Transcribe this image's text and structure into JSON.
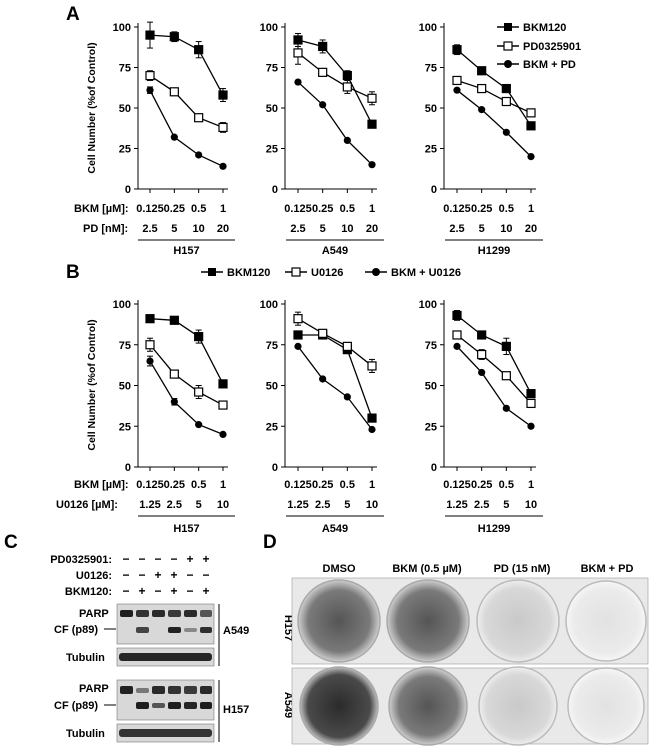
{
  "colors": {
    "line": "#000000",
    "panel_bg": "#ffffff",
    "blot_bg": "#d6d6d6",
    "plate_bg": "#e4e4e4"
  },
  "ylabel": "Cell Number (%of Control)",
  "yticks": [
    "0",
    "25",
    "50",
    "75",
    "100"
  ],
  "panelA": {
    "letter": "A",
    "row1_label": "BKM [µM]:",
    "row2_label": "PD [nM]:",
    "row1_values": [
      "0.125",
      "0.25",
      "0.5",
      "1"
    ],
    "row2_values": [
      "2.5",
      "5",
      "10",
      "20"
    ],
    "legend": [
      "BKM120",
      "PD0325901",
      "BKM + PD"
    ]
  },
  "panelB": {
    "letter": "B",
    "row1_label": "BKM [µM]:",
    "row2_label": "U0126 [µM]:",
    "row1_values": [
      "0.125",
      "0.25",
      "0.5",
      "1"
    ],
    "row2_values": [
      "1.25",
      "2.5",
      "5",
      "10"
    ],
    "legend": [
      "BKM120",
      "U0126",
      "BKM + U0126"
    ]
  },
  "chart_data": [
    {
      "panel": "A",
      "cell_line": "H157",
      "type": "line",
      "ylabel": "Cell Number (%of Control)",
      "ylim": [
        0,
        100
      ],
      "categories": [
        "0.125 / 2.5",
        "0.25 / 5",
        "0.5 / 10",
        "1 / 20"
      ],
      "series": [
        {
          "name": "BKM120",
          "values": [
            95,
            94,
            86,
            58
          ]
        },
        {
          "name": "PD0325901",
          "values": [
            70,
            60,
            44,
            38
          ]
        },
        {
          "name": "BKM + PD",
          "values": [
            61,
            32,
            21,
            14
          ]
        }
      ]
    },
    {
      "panel": "A",
      "cell_line": "A549",
      "type": "line",
      "ylabel": "Cell Number (%of Control)",
      "ylim": [
        0,
        100
      ],
      "categories": [
        "0.125 / 2.5",
        "0.25 / 5",
        "0.5 / 10",
        "1 / 20"
      ],
      "series": [
        {
          "name": "BKM120",
          "values": [
            92,
            88,
            70,
            40
          ]
        },
        {
          "name": "PD0325901",
          "values": [
            84,
            72,
            63,
            56
          ]
        },
        {
          "name": "BKM + PD",
          "values": [
            66,
            52,
            30,
            15
          ]
        }
      ]
    },
    {
      "panel": "A",
      "cell_line": "H1299",
      "type": "line",
      "ylabel": "Cell Number (%of Control)",
      "ylim": [
        0,
        100
      ],
      "categories": [
        "0.125 / 2.5",
        "0.25 / 5",
        "0.5 / 10",
        "1 / 20"
      ],
      "series": [
        {
          "name": "BKM120",
          "values": [
            86,
            73,
            62,
            39
          ]
        },
        {
          "name": "PD0325901",
          "values": [
            67,
            62,
            54,
            47
          ]
        },
        {
          "name": "BKM + PD",
          "values": [
            61,
            49,
            35,
            20
          ]
        }
      ]
    },
    {
      "panel": "B",
      "cell_line": "H157",
      "type": "line",
      "ylabel": "Cell Number (%of Control)",
      "ylim": [
        0,
        100
      ],
      "categories": [
        "0.125 / 1.25",
        "0.25 / 2.5",
        "0.5 / 5",
        "1 / 10"
      ],
      "series": [
        {
          "name": "BKM120",
          "values": [
            91,
            90,
            80,
            51
          ]
        },
        {
          "name": "U0126",
          "values": [
            75,
            57,
            46,
            38
          ]
        },
        {
          "name": "BKM + U0126",
          "values": [
            65,
            40,
            26,
            20
          ]
        }
      ]
    },
    {
      "panel": "B",
      "cell_line": "A549",
      "type": "line",
      "ylabel": "Cell Number (%of Control)",
      "ylim": [
        0,
        100
      ],
      "categories": [
        "0.125 / 1.25",
        "0.25 / 2.5",
        "0.5 / 5",
        "1 / 10"
      ],
      "series": [
        {
          "name": "BKM120",
          "values": [
            81,
            81,
            72,
            30
          ]
        },
        {
          "name": "U0126",
          "values": [
            91,
            82,
            74,
            62
          ]
        },
        {
          "name": "BKM + U0126",
          "values": [
            74,
            54,
            43,
            23
          ]
        }
      ]
    },
    {
      "panel": "B",
      "cell_line": "H1299",
      "type": "line",
      "ylabel": "Cell Number (%of Control)",
      "ylim": [
        0,
        100
      ],
      "categories": [
        "0.125 / 1.25",
        "0.25 / 2.5",
        "0.5 / 5",
        "1 / 10"
      ],
      "series": [
        {
          "name": "BKM120",
          "values": [
            93,
            81,
            74,
            45
          ]
        },
        {
          "name": "U0126",
          "values": [
            81,
            69,
            56,
            39
          ]
        },
        {
          "name": "BKM + U0126",
          "values": [
            74,
            58,
            36,
            25
          ]
        }
      ]
    }
  ],
  "panelC": {
    "letter": "C",
    "treatments": [
      {
        "label": "PD0325901:",
        "marks": [
          "−",
          "−",
          "−",
          "−",
          "+",
          "+"
        ]
      },
      {
        "label": "U0126:",
        "marks": [
          "−",
          "−",
          "+",
          "+",
          "−",
          "−"
        ]
      },
      {
        "label": "BKM120:",
        "marks": [
          "−",
          "+",
          "−",
          "+",
          "−",
          "+"
        ]
      }
    ],
    "blots": [
      {
        "cell_line": "A549",
        "band1": "PARP",
        "band2": "CF (p89)",
        "loading": "Tubulin"
      },
      {
        "cell_line": "H157",
        "band1": "PARP",
        "band2": "CF (p89)",
        "loading": "Tubulin"
      }
    ]
  },
  "panelD": {
    "letter": "D",
    "columns": [
      "DMSO",
      "BKM (0.5 µM)",
      "PD (15 nM)",
      "BKM + PD"
    ],
    "rows": [
      "H157",
      "A549"
    ]
  }
}
